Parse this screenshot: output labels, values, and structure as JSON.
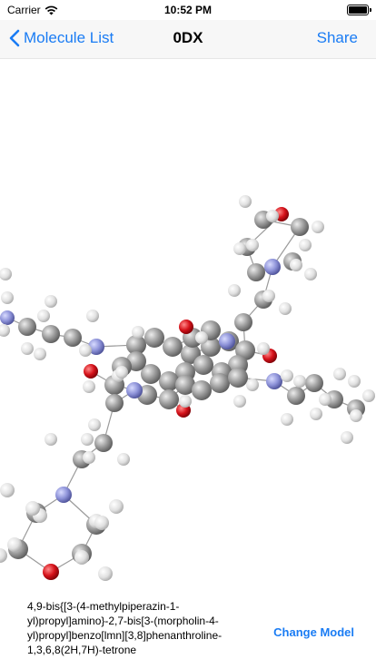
{
  "status": {
    "carrier": "Carrier",
    "time": "10:52 PM"
  },
  "nav": {
    "back_label": "Molecule List",
    "title": "0DX",
    "share_label": "Share"
  },
  "molecule": {
    "name": "4,9-bis{[3-(4-methylpiperazin-1-yl)propyl]amino}-2,7-bis[3-(morpholin-4-yl)propyl]benzo[lmn][3,8]phenanthroline-1,3,6,8(2H,7H)-tetrone"
  },
  "footer": {
    "change_model_label": "Change Model"
  },
  "colors": {
    "accent": "#1a7cf4",
    "carbon": "#9a9a9a",
    "hydrogen": "#e4e4e4",
    "nitrogen": "#8d92d8",
    "oxygen": "#d5121a"
  }
}
